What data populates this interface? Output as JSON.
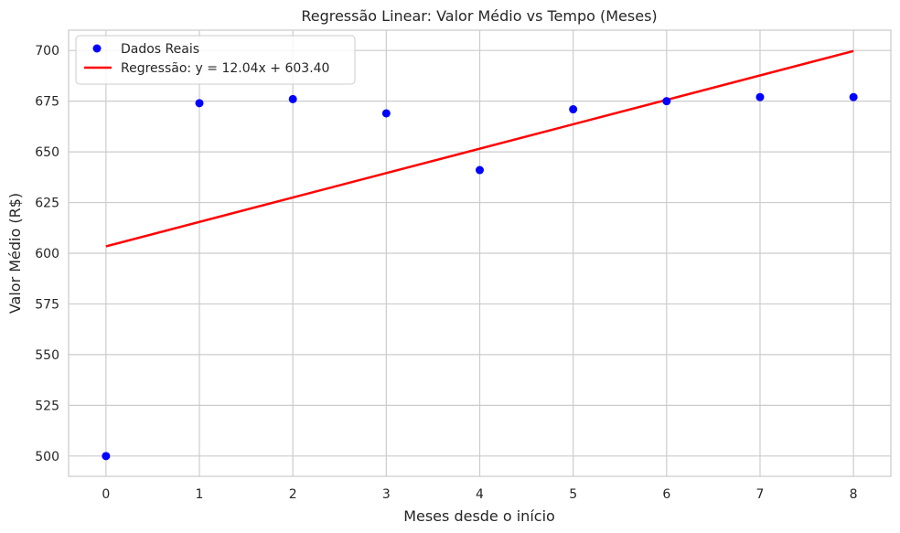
{
  "chart_data": {
    "type": "scatter",
    "title": "Regressão Linear: Valor Médio vs Tempo (Meses)",
    "xlabel": "Meses desde o início",
    "ylabel": "Valor Médio (R$)",
    "xlim": [
      -0.4,
      8.4
    ],
    "ylim": [
      490,
      710
    ],
    "xticks": [
      0,
      1,
      2,
      3,
      4,
      5,
      6,
      7,
      8
    ],
    "yticks": [
      500,
      525,
      550,
      575,
      600,
      625,
      650,
      675,
      700
    ],
    "grid": true,
    "legend_position": "top-left",
    "series": [
      {
        "name": "Dados Reais",
        "kind": "scatter",
        "color": "#0000ff",
        "x": [
          0,
          1,
          2,
          3,
          4,
          5,
          6,
          7,
          8
        ],
        "y": [
          500,
          674,
          676,
          669,
          641,
          671,
          675,
          677,
          677
        ]
      },
      {
        "name": "Regressão: y = 12.04x + 603.40",
        "kind": "line",
        "color": "#ff0000",
        "x": [
          0,
          8
        ],
        "y": [
          603.4,
          699.72
        ]
      }
    ]
  }
}
